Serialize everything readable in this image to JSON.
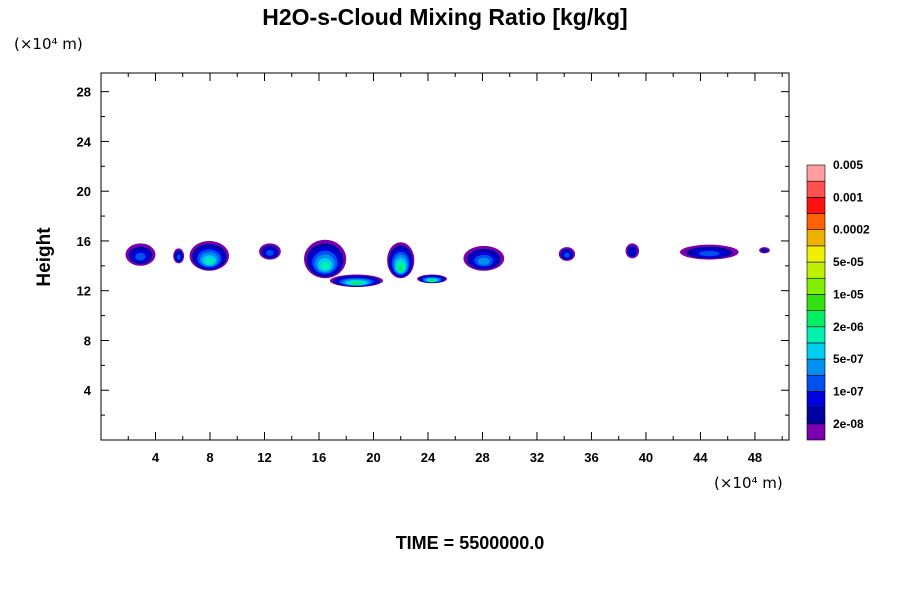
{
  "chart_data": {
    "type": "heatmap",
    "title": "H2O-s-Cloud Mixing Ratio [kg/kg]",
    "xlabel": "",
    "ylabel": "Height",
    "x_unit": "(×10⁴ m)",
    "y_unit": "(×10⁴ m)",
    "xlim": [
      0,
      50.5
    ],
    "ylim": [
      0,
      29.5
    ],
    "x_ticks": [
      4,
      8,
      12,
      16,
      20,
      24,
      28,
      32,
      36,
      40,
      44,
      48
    ],
    "y_ticks": [
      4,
      8,
      12,
      16,
      20,
      24,
      28
    ],
    "time_label": "TIME = 5500000.0",
    "colorbar": {
      "colors": [
        "#7a00b0",
        "#0000a0",
        "#0000e0",
        "#0050f0",
        "#0090f0",
        "#00d0f0",
        "#00f0b0",
        "#00f060",
        "#30e010",
        "#80f000",
        "#c0f000",
        "#f0f000",
        "#f0b000",
        "#ff6000",
        "#ff1010",
        "#ff5050",
        "#ffa0a0"
      ],
      "labels": [
        "2e-08",
        "1e-07",
        "5e-07",
        "2e-06",
        "1e-05",
        "5e-05",
        "0.0002",
        "0.001",
        "0.005"
      ]
    },
    "cloud_regions": [
      {
        "x": [
          1.8,
          4.0
        ],
        "y": [
          14.0,
          15.8
        ],
        "max_level": 3
      },
      {
        "x": [
          5.3,
          6.1
        ],
        "y": [
          14.2,
          15.4
        ],
        "max_level": 3
      },
      {
        "x": [
          6.5,
          9.4
        ],
        "y": [
          13.6,
          16.0
        ],
        "max_level": 6
      },
      {
        "x": [
          11.6,
          13.2
        ],
        "y": [
          14.5,
          15.8
        ],
        "max_level": 3
      },
      {
        "x": [
          14.9,
          18.0
        ],
        "y": [
          13.0,
          16.1
        ],
        "max_level": 6
      },
      {
        "x": [
          16.8,
          20.7
        ],
        "y": [
          12.3,
          13.3
        ],
        "max_level": 7
      },
      {
        "x": [
          21.0,
          23.0
        ],
        "y": [
          13.0,
          15.9
        ],
        "max_level": 7
      },
      {
        "x": [
          23.2,
          25.4
        ],
        "y": [
          12.6,
          13.3
        ],
        "max_level": 7
      },
      {
        "x": [
          26.6,
          29.6
        ],
        "y": [
          13.6,
          15.6
        ],
        "max_level": 4
      },
      {
        "x": [
          33.6,
          34.8
        ],
        "y": [
          14.4,
          15.5
        ],
        "max_level": 3
      },
      {
        "x": [
          38.5,
          39.5
        ],
        "y": [
          14.6,
          15.8
        ],
        "max_level": 2
      },
      {
        "x": [
          42.5,
          46.8
        ],
        "y": [
          14.5,
          15.7
        ],
        "max_level": 3
      },
      {
        "x": [
          48.3,
          49.1
        ],
        "y": [
          15.0,
          15.5
        ],
        "max_level": 1
      }
    ]
  }
}
